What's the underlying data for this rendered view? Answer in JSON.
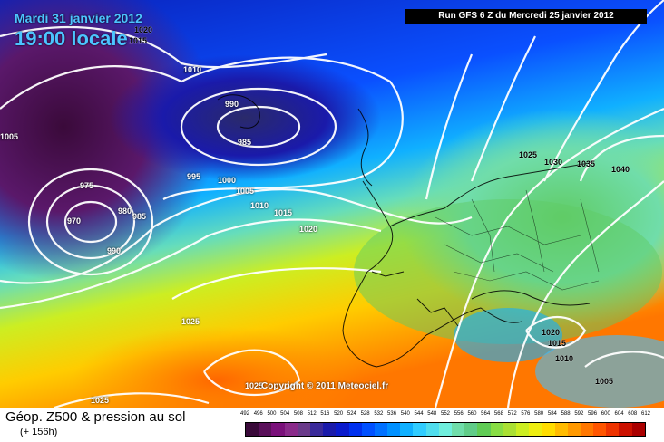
{
  "header": {
    "date": "Mardi 31 janvier 2012",
    "time": "19:00 locale",
    "run": "Run GFS 6 Z du Mercredi 25 janvier 2012"
  },
  "map": {
    "copyright": "Copyright © 2011 Meteociel.fr",
    "isobar_labels": [
      "1020",
      "1015",
      "1010",
      "990",
      "985",
      "1005",
      "975",
      "970",
      "980",
      "985",
      "990",
      "995",
      "1000",
      "1005",
      "1010",
      "1015",
      "1020",
      "1025",
      "1030",
      "1035",
      "1040",
      "1020",
      "1015",
      "1010",
      "1005",
      "1025",
      "1025",
      "1025"
    ]
  },
  "footer": {
    "title": "Géop. Z500 & pression au sol",
    "subtitle": "(+ 156h)"
  },
  "scale": {
    "ticks": [
      "492",
      "496",
      "500",
      "504",
      "508",
      "512",
      "516",
      "520",
      "524",
      "528",
      "532",
      "536",
      "540",
      "544",
      "548",
      "552",
      "556",
      "560",
      "564",
      "568",
      "572",
      "576",
      "580",
      "584",
      "588",
      "592",
      "596",
      "600",
      "604",
      "608",
      "612"
    ],
    "colors": [
      "#3a0a3a",
      "#5a105a",
      "#7a107a",
      "#8a2a8a",
      "#6a3a8a",
      "#3a2a9a",
      "#1a1aaa",
      "#0a1acc",
      "#0030ee",
      "#0050ff",
      "#0070ff",
      "#0090ff",
      "#10b0ff",
      "#30ccff",
      "#50ddee",
      "#70eedd",
      "#70ddaa",
      "#60cc88",
      "#60cc55",
      "#88dd44",
      "#aae033",
      "#ccee22",
      "#eeee11",
      "#ffdd00",
      "#ffbb00",
      "#ff9900",
      "#ff7700",
      "#ff5500",
      "#ee3300",
      "#cc1100",
      "#aa0000"
    ]
  }
}
